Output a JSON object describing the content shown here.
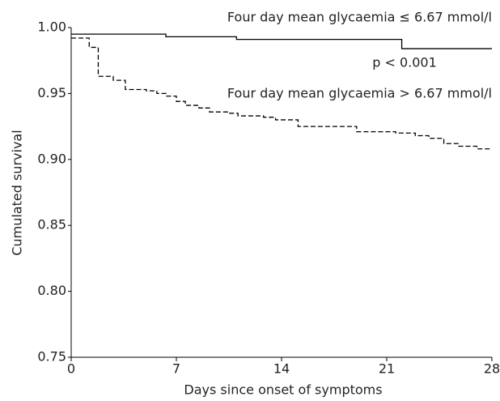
{
  "chart_data": {
    "type": "step",
    "xlabel": "Days since onset of symptoms",
    "ylabel": "Cumulated survival",
    "annotation": "p < 0.001",
    "xlim": [
      0,
      28
    ],
    "xticks": [
      0,
      7,
      14,
      21,
      28
    ],
    "ylim": [
      0.75,
      1.0
    ],
    "yticks": [
      0.75,
      {
        "value": 0.8,
        "label": "0.80"
      },
      0.85,
      {
        "value": 0.9,
        "label": "0.90"
      },
      0.95,
      {
        "value": 1.0,
        "label": "1.00"
      }
    ],
    "grid": false,
    "series": [
      {
        "name": "Four day mean glycaemia ≤ 6.67 mmol/l",
        "color": "#000000",
        "dash": false,
        "x": [
          0,
          6.3,
          11,
          22,
          28
        ],
        "values": [
          0.995,
          0.993,
          0.991,
          0.984,
          0.984
        ]
      },
      {
        "name": "Four day mean glycaemia > 6.67 mmol/l",
        "color": "#000000",
        "dash": true,
        "x": [
          0,
          1.2,
          1.8,
          2.8,
          3.6,
          5,
          5.7,
          6.3,
          7,
          7.6,
          8.5,
          9.2,
          10.5,
          11.1,
          12.8,
          13.6,
          15.1,
          19,
          21.6,
          22.9,
          23.8,
          24.8,
          25.8,
          27,
          28
        ],
        "values": [
          0.992,
          0.985,
          0.963,
          0.96,
          0.953,
          0.952,
          0.95,
          0.948,
          0.944,
          0.941,
          0.939,
          0.936,
          0.935,
          0.933,
          0.932,
          0.93,
          0.925,
          0.921,
          0.92,
          0.918,
          0.916,
          0.912,
          0.91,
          0.908,
          0.908
        ]
      }
    ]
  }
}
